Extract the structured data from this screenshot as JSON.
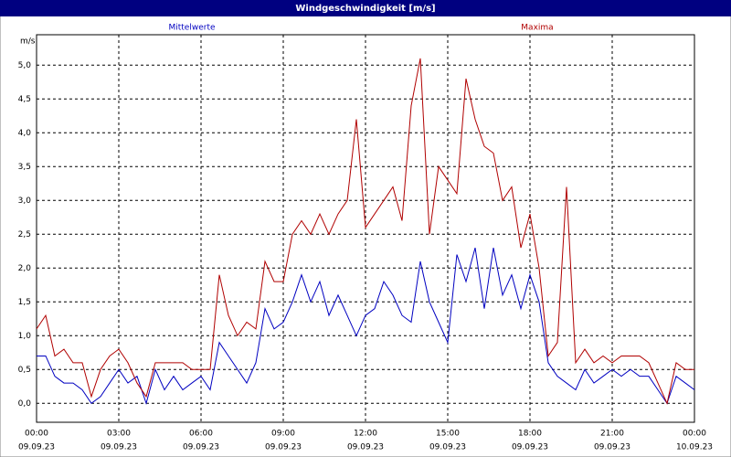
{
  "chart_data": {
    "type": "line",
    "title": "Windgeschwindigkeit [m/s]",
    "y_label": "m/s",
    "x": [
      0,
      20,
      40,
      60,
      80,
      100,
      120,
      140,
      160,
      180,
      200,
      220,
      240,
      260,
      280,
      300,
      320,
      340,
      360,
      380,
      400,
      420,
      440,
      460,
      480,
      500,
      520,
      540,
      560,
      580,
      600,
      620,
      640,
      660,
      680,
      700,
      720,
      740,
      760,
      780,
      800,
      820,
      840,
      860,
      880,
      900,
      920,
      940,
      960,
      980,
      1000,
      1020,
      1040,
      1060,
      1080,
      1100,
      1120,
      1140,
      1160,
      1180,
      1200,
      1220,
      1240,
      1260,
      1280,
      1300,
      1320,
      1340,
      1360,
      1380,
      1400,
      1420,
      1440
    ],
    "series": [
      {
        "name": "Mittelwerte",
        "color": "#0000c0",
        "values": [
          0.7,
          0.7,
          0.4,
          0.3,
          0.3,
          0.2,
          0.0,
          0.1,
          0.3,
          0.5,
          0.3,
          0.4,
          0.0,
          0.5,
          0.2,
          0.4,
          0.2,
          0.3,
          0.4,
          0.2,
          0.9,
          0.7,
          0.5,
          0.3,
          0.6,
          1.4,
          1.1,
          1.2,
          1.5,
          1.9,
          1.5,
          1.8,
          1.3,
          1.6,
          1.3,
          1.0,
          1.3,
          1.4,
          1.8,
          1.6,
          1.3,
          1.2,
          2.1,
          1.5,
          1.2,
          0.9,
          2.2,
          1.8,
          2.3,
          1.4,
          2.3,
          1.6,
          1.9,
          1.4,
          1.9,
          1.5,
          0.6,
          0.4,
          0.3,
          0.2,
          0.5,
          0.3,
          0.4,
          0.5,
          0.4,
          0.5,
          0.4,
          0.4,
          0.2,
          0.0,
          0.4,
          0.3,
          0.2
        ]
      },
      {
        "name": "Maxima",
        "color": "#b00000",
        "values": [
          1.1,
          1.3,
          0.7,
          0.8,
          0.6,
          0.6,
          0.1,
          0.5,
          0.7,
          0.8,
          0.6,
          0.3,
          0.1,
          0.6,
          0.6,
          0.6,
          0.6,
          0.5,
          0.5,
          0.5,
          1.9,
          1.3,
          1.0,
          1.2,
          1.1,
          2.1,
          1.8,
          1.8,
          2.5,
          2.7,
          2.5,
          2.8,
          2.5,
          2.8,
          3.0,
          4.2,
          2.6,
          2.8,
          3.0,
          3.2,
          2.7,
          4.4,
          5.1,
          2.5,
          3.5,
          3.3,
          3.1,
          4.8,
          4.2,
          3.8,
          3.7,
          3.0,
          3.2,
          2.3,
          2.8,
          2.0,
          0.7,
          0.9,
          3.2,
          0.6,
          0.8,
          0.6,
          0.7,
          0.6,
          0.7,
          0.7,
          0.7,
          0.6,
          0.3,
          0.0,
          0.6,
          0.5,
          0.5
        ]
      }
    ],
    "xlim": [
      0,
      1440
    ],
    "xticks": [
      {
        "value": 0,
        "label": "00:00"
      },
      {
        "value": 180,
        "label": "03:00"
      },
      {
        "value": 360,
        "label": "06:00"
      },
      {
        "value": 540,
        "label": "09:00"
      },
      {
        "value": 720,
        "label": "12:00"
      },
      {
        "value": 900,
        "label": "15:00"
      },
      {
        "value": 1080,
        "label": "18:00"
      },
      {
        "value": 1260,
        "label": "21:00"
      },
      {
        "value": 1440,
        "label": "00:00"
      }
    ],
    "xtick_dates": [
      "09.09.23",
      "09.09.23",
      "09.09.23",
      "09.09.23",
      "09.09.23",
      "09.09.23",
      "09.09.23",
      "09.09.23",
      "10.09.23"
    ],
    "ylim": [
      -0.28,
      5.45
    ],
    "yticks": [
      {
        "value": 0,
        "label": "0,0"
      },
      {
        "value": 0.5,
        "label": "0,5"
      },
      {
        "value": 1,
        "label": "1,0"
      },
      {
        "value": 1.5,
        "label": "1,5"
      },
      {
        "value": 2,
        "label": "2,0"
      },
      {
        "value": 2.5,
        "label": "2,5"
      },
      {
        "value": 3,
        "label": "3,0"
      },
      {
        "value": 3.5,
        "label": "3,5"
      },
      {
        "value": 4,
        "label": "4,0"
      },
      {
        "value": 4.5,
        "label": "4,5"
      },
      {
        "value": 5,
        "label": "5,0"
      }
    ],
    "grid": true
  }
}
